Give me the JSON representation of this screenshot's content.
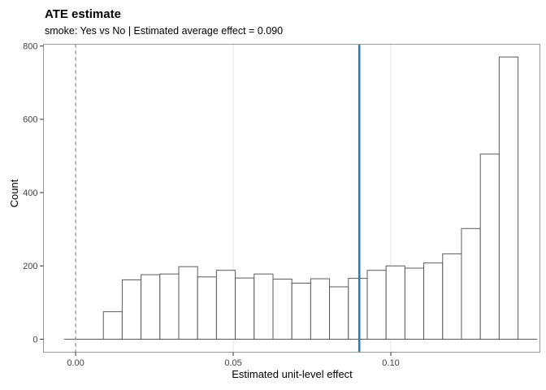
{
  "title": "ATE estimate",
  "subtitle": "smoke: Yes vs No | Estimated average effect = 0.090",
  "chart_data": {
    "type": "bar",
    "subtype": "histogram",
    "title": "ATE estimate",
    "subtitle": "smoke: Yes vs No | Estimated average effect = 0.090",
    "xlabel": "Estimated unit-level effect",
    "ylabel": "Count",
    "xlim": [
      -0.0102,
      0.1473
    ],
    "ylim": [
      -35.5,
      804.7
    ],
    "grid": "vertical-major-only",
    "x_ticks": [
      {
        "value": 0.0,
        "label": "0.00"
      },
      {
        "value": 0.05,
        "label": "0.05"
      },
      {
        "value": 0.1,
        "label": "0.10"
      }
    ],
    "y_ticks": [
      {
        "value": 0,
        "label": "0"
      },
      {
        "value": 200,
        "label": "200"
      },
      {
        "value": 400,
        "label": "400"
      },
      {
        "value": 600,
        "label": "600"
      },
      {
        "value": 800,
        "label": "800"
      }
    ],
    "bins": {
      "start": 0.0088,
      "width": 0.00598,
      "counts": [
        75,
        162,
        176,
        178,
        198,
        170,
        188,
        167,
        178,
        164,
        153,
        165,
        143,
        166,
        188,
        200,
        194,
        208,
        233,
        302,
        505,
        770
      ]
    },
    "baseline": {
      "from": -0.0036,
      "to": 0.1464
    },
    "vlines": [
      {
        "name": "zero-reference-line",
        "value": 0.0,
        "style": "dashed",
        "color": "#8a8a8a",
        "width": 1.3
      },
      {
        "name": "average-effect-line",
        "value": 0.09,
        "style": "solid",
        "color": "#2d7bb6",
        "width": 2.6
      }
    ],
    "colors": {
      "bar_fill": "#ffffff",
      "bar_stroke": "#5a5a5a",
      "grid": "#e3e3e3",
      "panel_border": "#999999",
      "tick": "#333333",
      "tick_label": "#404040",
      "background": "#ffffff"
    }
  }
}
